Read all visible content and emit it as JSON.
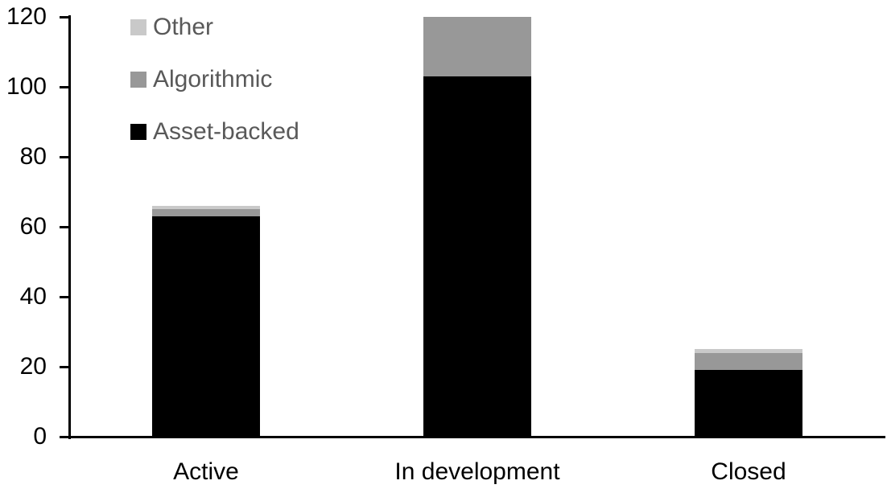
{
  "chart_data": {
    "type": "bar",
    "stacked": true,
    "title": "",
    "xlabel": "",
    "ylabel": "",
    "categories": [
      "Active",
      "In development",
      "Closed"
    ],
    "series": [
      {
        "name": "Asset-backed",
        "color": "#000000",
        "values": [
          63,
          103,
          19
        ]
      },
      {
        "name": "Algorithmic",
        "color": "#989898",
        "values": [
          2,
          17,
          5
        ]
      },
      {
        "name": "Other",
        "color": "#c9c9c9",
        "values": [
          1,
          0,
          1
        ]
      }
    ],
    "totals": [
      66,
      120,
      25
    ],
    "ylim": [
      0,
      120
    ],
    "y_ticks": [
      0,
      20,
      40,
      60,
      80,
      100,
      120
    ],
    "grid": false,
    "legend": {
      "position": "top-left-inside",
      "entries": [
        "Other",
        "Algorithmic",
        "Asset-backed"
      ],
      "text_color": "#595959"
    },
    "axis_color": "#000000"
  }
}
